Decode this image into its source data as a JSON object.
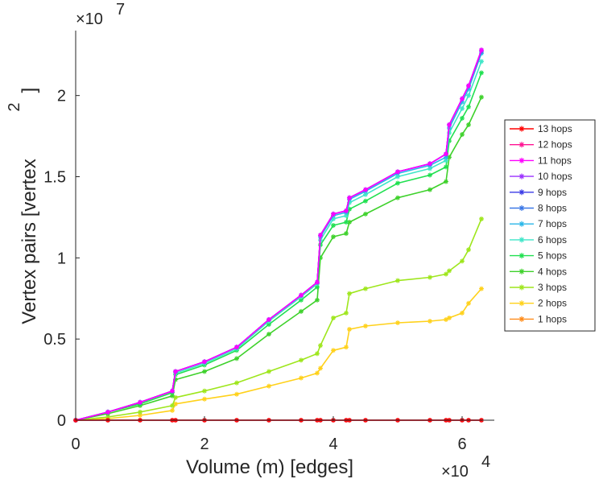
{
  "chart_data": {
    "type": "line",
    "title": "",
    "xlabel": "Volume (m) [edges]",
    "ylabel": "Vertex pairs [vertex",
    "ylabel_superscript": "2",
    "ylabel_close": "]",
    "x_exponent": {
      "base": "×10",
      "power": "4"
    },
    "y_exponent": {
      "base": "×10",
      "power": "7"
    },
    "xlim": [
      0,
      6.5
    ],
    "ylim": [
      0,
      2.4
    ],
    "xticks": [
      0,
      2,
      4,
      6
    ],
    "xtick_labels": [
      "0",
      "2",
      "4",
      "6"
    ],
    "yticks": [
      0,
      0.5,
      1,
      1.5,
      2
    ],
    "ytick_labels": [
      "0",
      "0.5",
      "1",
      "1.5",
      "2"
    ],
    "grid": false,
    "legend_position": "right",
    "x": [
      0,
      0.5,
      1.0,
      1.5,
      1.55,
      2.0,
      2.5,
      3.0,
      3.5,
      3.75,
      3.8,
      4.0,
      4.2,
      4.25,
      4.5,
      5.0,
      5.5,
      5.75,
      5.8,
      6.0,
      6.1,
      6.3
    ],
    "series": [
      {
        "name": "13 hops",
        "color": "#ff0000",
        "values": [
          0,
          0,
          0,
          0,
          0,
          0,
          0,
          0,
          0,
          0,
          0,
          0,
          0,
          0,
          0,
          0,
          0,
          0,
          0,
          0,
          0,
          0
        ]
      },
      {
        "name": "12 hops",
        "color": "#ff1493",
        "values": [
          0,
          0,
          0,
          0,
          0,
          0,
          0,
          0,
          0,
          0,
          0,
          0,
          0,
          0,
          0,
          0,
          0,
          0,
          0,
          0,
          0,
          0
        ]
      },
      {
        "name": "11 hops",
        "color": "#ff00ff",
        "values": [
          0.0,
          0.05,
          0.11,
          0.18,
          0.3,
          0.36,
          0.45,
          0.62,
          0.77,
          0.85,
          1.14,
          1.27,
          1.29,
          1.37,
          1.42,
          1.53,
          1.58,
          1.64,
          1.82,
          1.98,
          2.06,
          2.28
        ]
      },
      {
        "name": "10 hops",
        "color": "#9b30ff",
        "values": [
          0.0,
          0.05,
          0.11,
          0.18,
          0.3,
          0.36,
          0.45,
          0.62,
          0.77,
          0.85,
          1.14,
          1.27,
          1.29,
          1.37,
          1.42,
          1.53,
          1.58,
          1.64,
          1.82,
          1.98,
          2.06,
          2.28
        ]
      },
      {
        "name": "9 hops",
        "color": "#3a3ae6",
        "values": [
          0.0,
          0.05,
          0.11,
          0.18,
          0.3,
          0.36,
          0.45,
          0.62,
          0.77,
          0.85,
          1.14,
          1.27,
          1.29,
          1.37,
          1.42,
          1.53,
          1.58,
          1.64,
          1.82,
          1.98,
          2.06,
          2.28
        ]
      },
      {
        "name": "8 hops",
        "color": "#3c78e6",
        "values": [
          0.0,
          0.05,
          0.11,
          0.18,
          0.3,
          0.36,
          0.45,
          0.62,
          0.77,
          0.85,
          1.14,
          1.27,
          1.29,
          1.37,
          1.42,
          1.53,
          1.58,
          1.64,
          1.82,
          1.98,
          2.06,
          2.27
        ]
      },
      {
        "name": "7 hops",
        "color": "#29b6e8",
        "values": [
          0.0,
          0.05,
          0.11,
          0.18,
          0.3,
          0.36,
          0.45,
          0.62,
          0.77,
          0.85,
          1.13,
          1.26,
          1.28,
          1.36,
          1.41,
          1.52,
          1.57,
          1.62,
          1.8,
          1.96,
          2.04,
          2.26
        ]
      },
      {
        "name": "6 hops",
        "color": "#3fe6c8",
        "values": [
          0.0,
          0.05,
          0.11,
          0.18,
          0.29,
          0.35,
          0.44,
          0.61,
          0.76,
          0.84,
          1.11,
          1.24,
          1.26,
          1.34,
          1.39,
          1.5,
          1.55,
          1.6,
          1.77,
          1.92,
          2.0,
          2.21
        ]
      },
      {
        "name": "5 hops",
        "color": "#20e050",
        "values": [
          0.0,
          0.05,
          0.1,
          0.17,
          0.28,
          0.34,
          0.43,
          0.59,
          0.74,
          0.82,
          1.08,
          1.2,
          1.22,
          1.3,
          1.35,
          1.46,
          1.51,
          1.56,
          1.72,
          1.86,
          1.93,
          2.14
        ]
      },
      {
        "name": "4 hops",
        "color": "#3ed12b",
        "values": [
          0.0,
          0.04,
          0.09,
          0.15,
          0.25,
          0.3,
          0.38,
          0.53,
          0.67,
          0.74,
          1.0,
          1.13,
          1.15,
          1.22,
          1.27,
          1.37,
          1.42,
          1.47,
          1.62,
          1.76,
          1.82,
          1.99
        ]
      },
      {
        "name": "3 hops",
        "color": "#9ee61c",
        "values": [
          0.0,
          0.02,
          0.05,
          0.09,
          0.14,
          0.18,
          0.23,
          0.3,
          0.37,
          0.41,
          0.46,
          0.63,
          0.66,
          0.78,
          0.81,
          0.86,
          0.88,
          0.9,
          0.92,
          0.98,
          1.05,
          1.24
        ]
      },
      {
        "name": "2 hops",
        "color": "#ffd11a",
        "values": [
          0.0,
          0.01,
          0.03,
          0.06,
          0.1,
          0.13,
          0.16,
          0.21,
          0.26,
          0.29,
          0.32,
          0.43,
          0.45,
          0.56,
          0.58,
          0.6,
          0.61,
          0.62,
          0.63,
          0.66,
          0.72,
          0.81
        ]
      },
      {
        "name": "1 hops",
        "color": "#ff8c1a",
        "values": [
          0,
          0,
          0,
          0,
          0,
          0,
          0,
          0,
          0,
          0,
          0,
          0,
          0,
          0,
          0,
          0,
          0,
          0,
          0,
          0,
          0,
          0
        ]
      }
    ]
  }
}
